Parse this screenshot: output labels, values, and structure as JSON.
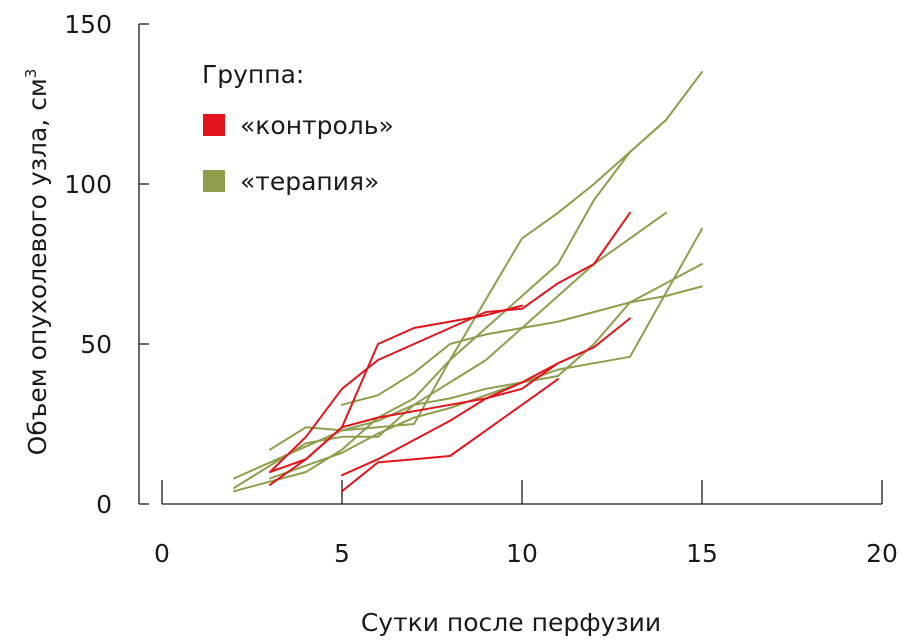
{
  "chart_data": {
    "type": "line",
    "xlabel": "Сутки после перфузии",
    "ylabel": "Объем опухолевого узла, см",
    "ylabel_superscript": "3",
    "xlim": [
      0,
      20
    ],
    "ylim": [
      0,
      150
    ],
    "xticks": [
      0,
      5,
      10,
      15,
      20
    ],
    "yticks": [
      0,
      50,
      100,
      150
    ],
    "grid": false,
    "legend": {
      "title": "Группа:",
      "placement": "top-left",
      "entries": [
        {
          "label": "«контроль»",
          "color": "#e3141b"
        },
        {
          "label": "«терапия»",
          "color": "#8e9e4c"
        }
      ]
    },
    "groups": [
      {
        "label": "«контроль»",
        "color": "#e3141b",
        "series": [
          {
            "x": [
              3,
              4,
              5,
              6,
              7,
              8,
              9,
              10,
              11,
              12,
              13
            ],
            "y": [
              6,
              14,
              24,
              27,
              29,
              31,
              33,
              36,
              44,
              49,
              58
            ]
          },
          {
            "x": [
              3,
              4,
              5,
              6,
              7,
              8,
              9,
              10,
              11,
              12,
              13
            ],
            "y": [
              10,
              21,
              36,
              45,
              50,
              55,
              60,
              61,
              69,
              75,
              91
            ]
          },
          {
            "x": [
              3,
              4,
              5,
              6,
              7,
              8,
              9,
              10
            ],
            "y": [
              10,
              14,
              24,
              50,
              55,
              57,
              59,
              62
            ]
          },
          {
            "x": [
              5,
              6,
              7,
              8,
              9,
              10,
              11
            ],
            "y": [
              9,
              14,
              20,
              26,
              33,
              38,
              44
            ]
          },
          {
            "x": [
              5,
              6,
              7,
              8,
              9,
              10,
              11
            ],
            "y": [
              4,
              13,
              14,
              15,
              23,
              31,
              39
            ]
          }
        ]
      },
      {
        "label": "«терапия»",
        "color": "#8e9e4c",
        "series": [
          {
            "x": [
              2,
              3,
              4,
              5,
              6,
              7,
              8,
              9,
              10,
              11,
              12,
              13,
              14,
              15
            ],
            "y": [
              4,
              7,
              10,
              17,
              27,
              33,
              45,
              55,
              65,
              75,
              95,
              110,
              120,
              135
            ]
          },
          {
            "x": [
              3,
              4,
              5,
              6,
              7,
              8,
              9,
              10,
              11,
              12,
              13,
              14
            ],
            "y": [
              17,
              24,
              23,
              24,
              25,
              45,
              64,
              83,
              91,
              100,
              110,
              120
            ]
          },
          {
            "x": [
              2,
              3,
              4,
              5,
              6,
              7,
              8,
              9,
              10,
              11,
              12,
              13,
              14
            ],
            "y": [
              8,
              13,
              18,
              23,
              26,
              31,
              38,
              45,
              55,
              65,
              75,
              83,
              91
            ]
          },
          {
            "x": [
              2,
              3,
              4,
              5,
              6,
              7,
              8,
              9,
              10,
              11,
              12,
              13,
              14,
              15
            ],
            "y": [
              5,
              12,
              19,
              21,
              21,
              31,
              33,
              36,
              38,
              40,
              50,
              63,
              69,
              75
            ]
          },
          {
            "x": [
              5,
              6,
              7,
              8,
              9,
              10,
              11,
              12,
              13,
              14,
              15
            ],
            "y": [
              31,
              34,
              41,
              50,
              53,
              55,
              57,
              60,
              63,
              65,
              68
            ]
          },
          {
            "x": [
              3,
              4,
              5,
              6,
              7,
              8,
              9,
              10,
              11,
              12,
              13,
              14,
              15
            ],
            "y": [
              8,
              12,
              16,
              22,
              27,
              30,
              34,
              38,
              42,
              44,
              46,
              66,
              86
            ]
          }
        ]
      }
    ]
  }
}
